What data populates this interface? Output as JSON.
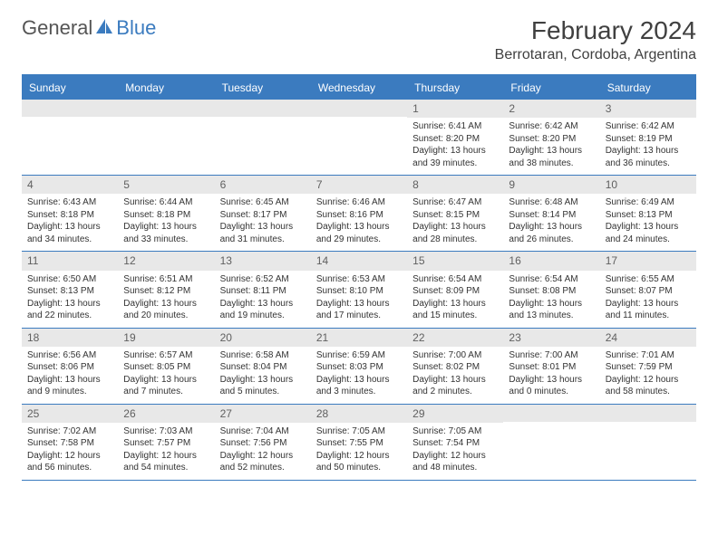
{
  "logo": {
    "general": "General",
    "blue": "Blue"
  },
  "title": "February 2024",
  "location": "Berrotaran, Cordoba, Argentina",
  "colors": {
    "header_bg": "#3b7bbf",
    "band_bg": "#e8e8e8",
    "border": "#3b7bbf",
    "text": "#333333",
    "title_text": "#404040"
  },
  "day_headers": [
    "Sunday",
    "Monday",
    "Tuesday",
    "Wednesday",
    "Thursday",
    "Friday",
    "Saturday"
  ],
  "leading_blanks": 4,
  "days": [
    {
      "n": "1",
      "sunrise": "6:41 AM",
      "sunset": "8:20 PM",
      "daylight": "13 hours and 39 minutes."
    },
    {
      "n": "2",
      "sunrise": "6:42 AM",
      "sunset": "8:20 PM",
      "daylight": "13 hours and 38 minutes."
    },
    {
      "n": "3",
      "sunrise": "6:42 AM",
      "sunset": "8:19 PM",
      "daylight": "13 hours and 36 minutes."
    },
    {
      "n": "4",
      "sunrise": "6:43 AM",
      "sunset": "8:18 PM",
      "daylight": "13 hours and 34 minutes."
    },
    {
      "n": "5",
      "sunrise": "6:44 AM",
      "sunset": "8:18 PM",
      "daylight": "13 hours and 33 minutes."
    },
    {
      "n": "6",
      "sunrise": "6:45 AM",
      "sunset": "8:17 PM",
      "daylight": "13 hours and 31 minutes."
    },
    {
      "n": "7",
      "sunrise": "6:46 AM",
      "sunset": "8:16 PM",
      "daylight": "13 hours and 29 minutes."
    },
    {
      "n": "8",
      "sunrise": "6:47 AM",
      "sunset": "8:15 PM",
      "daylight": "13 hours and 28 minutes."
    },
    {
      "n": "9",
      "sunrise": "6:48 AM",
      "sunset": "8:14 PM",
      "daylight": "13 hours and 26 minutes."
    },
    {
      "n": "10",
      "sunrise": "6:49 AM",
      "sunset": "8:13 PM",
      "daylight": "13 hours and 24 minutes."
    },
    {
      "n": "11",
      "sunrise": "6:50 AM",
      "sunset": "8:13 PM",
      "daylight": "13 hours and 22 minutes."
    },
    {
      "n": "12",
      "sunrise": "6:51 AM",
      "sunset": "8:12 PM",
      "daylight": "13 hours and 20 minutes."
    },
    {
      "n": "13",
      "sunrise": "6:52 AM",
      "sunset": "8:11 PM",
      "daylight": "13 hours and 19 minutes."
    },
    {
      "n": "14",
      "sunrise": "6:53 AM",
      "sunset": "8:10 PM",
      "daylight": "13 hours and 17 minutes."
    },
    {
      "n": "15",
      "sunrise": "6:54 AM",
      "sunset": "8:09 PM",
      "daylight": "13 hours and 15 minutes."
    },
    {
      "n": "16",
      "sunrise": "6:54 AM",
      "sunset": "8:08 PM",
      "daylight": "13 hours and 13 minutes."
    },
    {
      "n": "17",
      "sunrise": "6:55 AM",
      "sunset": "8:07 PM",
      "daylight": "13 hours and 11 minutes."
    },
    {
      "n": "18",
      "sunrise": "6:56 AM",
      "sunset": "8:06 PM",
      "daylight": "13 hours and 9 minutes."
    },
    {
      "n": "19",
      "sunrise": "6:57 AM",
      "sunset": "8:05 PM",
      "daylight": "13 hours and 7 minutes."
    },
    {
      "n": "20",
      "sunrise": "6:58 AM",
      "sunset": "8:04 PM",
      "daylight": "13 hours and 5 minutes."
    },
    {
      "n": "21",
      "sunrise": "6:59 AM",
      "sunset": "8:03 PM",
      "daylight": "13 hours and 3 minutes."
    },
    {
      "n": "22",
      "sunrise": "7:00 AM",
      "sunset": "8:02 PM",
      "daylight": "13 hours and 2 minutes."
    },
    {
      "n": "23",
      "sunrise": "7:00 AM",
      "sunset": "8:01 PM",
      "daylight": "13 hours and 0 minutes."
    },
    {
      "n": "24",
      "sunrise": "7:01 AM",
      "sunset": "7:59 PM",
      "daylight": "12 hours and 58 minutes."
    },
    {
      "n": "25",
      "sunrise": "7:02 AM",
      "sunset": "7:58 PM",
      "daylight": "12 hours and 56 minutes."
    },
    {
      "n": "26",
      "sunrise": "7:03 AM",
      "sunset": "7:57 PM",
      "daylight": "12 hours and 54 minutes."
    },
    {
      "n": "27",
      "sunrise": "7:04 AM",
      "sunset": "7:56 PM",
      "daylight": "12 hours and 52 minutes."
    },
    {
      "n": "28",
      "sunrise": "7:05 AM",
      "sunset": "7:55 PM",
      "daylight": "12 hours and 50 minutes."
    },
    {
      "n": "29",
      "sunrise": "7:05 AM",
      "sunset": "7:54 PM",
      "daylight": "12 hours and 48 minutes."
    }
  ],
  "labels": {
    "sunrise": "Sunrise:",
    "sunset": "Sunset:",
    "daylight": "Daylight:"
  }
}
